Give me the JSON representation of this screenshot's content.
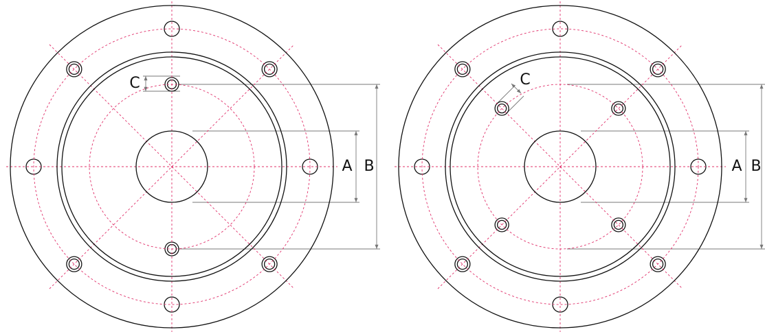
{
  "flanges": [
    {
      "label_a": "A",
      "label_b": "B",
      "label_c": "C"
    },
    {
      "label_a": "A",
      "label_b": "B",
      "label_c": "C"
    }
  ]
}
